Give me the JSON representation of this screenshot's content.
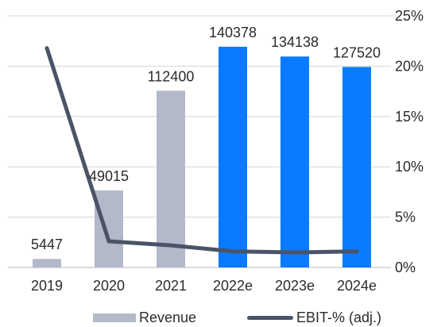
{
  "chart_data": {
    "type": "bar+line",
    "categories": [
      "2019",
      "2020",
      "2021",
      "2022e",
      "2023e",
      "2024e"
    ],
    "series": [
      {
        "name": "Revenue",
        "kind": "bar",
        "axis": "left",
        "values": [
          5447,
          49015,
          112400,
          140378,
          134138,
          127520
        ],
        "data_labels": [
          "5447",
          "49015",
          "112400",
          "140378",
          "134138",
          "127520"
        ],
        "colors": [
          "#b3b9c9",
          "#b3b9c9",
          "#b3b9c9",
          "#0a7aff",
          "#0a7aff",
          "#0a7aff"
        ]
      },
      {
        "name": "EBIT-% (adj.)",
        "kind": "line",
        "axis": "right",
        "values": [
          21.8,
          2.6,
          2.2,
          1.6,
          1.5,
          1.6
        ],
        "color": "#4a5466"
      }
    ],
    "y_left": {
      "min": 0,
      "max": 160000,
      "show_labels": false
    },
    "y_right": {
      "min": 0,
      "max": 25,
      "ticks": [
        0,
        5,
        10,
        15,
        20,
        25
      ],
      "tick_labels": [
        "0%",
        "5%",
        "10%",
        "15%",
        "20%",
        "25%"
      ]
    },
    "grid": "horizontal",
    "legend": {
      "position": "bottom",
      "entries": [
        {
          "label": "Revenue",
          "marker": "bar",
          "color": "#b3b9c9"
        },
        {
          "label": "EBIT-% (adj.)",
          "marker": "line",
          "color": "#4a5466"
        }
      ]
    }
  }
}
